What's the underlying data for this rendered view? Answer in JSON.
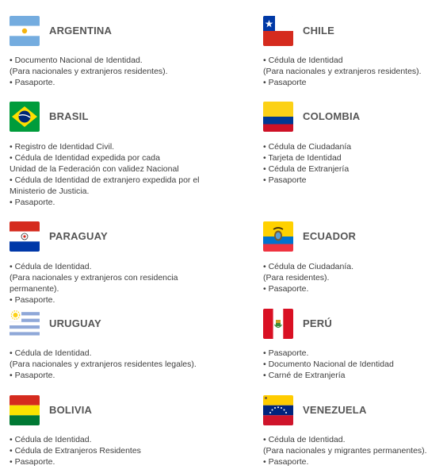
{
  "countries": [
    {
      "name": "ARGENTINA",
      "flag_icon": "argentina-flag-icon",
      "lines": [
        "• Documento Nacional de Identidad.",
        "(Para nacionales y extranjeros residentes).",
        "• Pasaporte."
      ]
    },
    {
      "name": "CHILE",
      "flag_icon": "chile-flag-icon",
      "lines": [
        "• Cédula de Identidad",
        "(Para nacionales y extranjeros residentes).",
        "• Pasaporte"
      ]
    },
    {
      "name": "BRASIL",
      "flag_icon": "brasil-flag-icon",
      "lines": [
        "• Registro de Identidad Civil.",
        "• Cédula de Identidad expedida por cada",
        "Unidad de la Federación con validez Nacional",
        "• Cédula de Identidad de extranjero expedida por el",
        "Ministerio de Justicia.",
        "• Pasaporte."
      ]
    },
    {
      "name": "COLOMBIA",
      "flag_icon": "colombia-flag-icon",
      "lines": [
        "• Cédula de Ciudadanía",
        "• Tarjeta de Identidad",
        "• Cédula de Extranjería",
        "• Pasaporte"
      ]
    },
    {
      "name": "PARAGUAY",
      "flag_icon": "paraguay-flag-icon",
      "lines": [
        "• Cédula de Identidad.",
        "(Para nacionales y extranjeros con residencia",
        "permanente).",
        "• Pasaporte."
      ]
    },
    {
      "name": "ECUADOR",
      "flag_icon": "ecuador-flag-icon",
      "lines": [
        "• Cédula de Ciudadanía.",
        "(Para residentes).",
        "• Pasaporte."
      ]
    },
    {
      "name": "URUGUAY",
      "flag_icon": "uruguay-flag-icon",
      "lines": [
        "• Cédula de Identidad.",
        "(Para nacionales y extranjeros residentes legales).",
        "• Pasaporte."
      ]
    },
    {
      "name": "PERÚ",
      "flag_icon": "peru-flag-icon",
      "lines": [
        "• Pasaporte.",
        "• Documento Nacional de Identidad",
        "• Carné de Extranjería"
      ]
    },
    {
      "name": "BOLIVIA",
      "flag_icon": "bolivia-flag-icon",
      "lines": [
        "• Cédula de Identidad.",
        "• Cédula de Extranjeros Residentes",
        "• Pasaporte."
      ]
    },
    {
      "name": "VENEZUELA",
      "flag_icon": "venezuela-flag-icon",
      "lines": [
        "• Cédula de Identidad.",
        "(Para nacionales y migrantes permanentes).",
        "• Pasaporte."
      ]
    }
  ]
}
